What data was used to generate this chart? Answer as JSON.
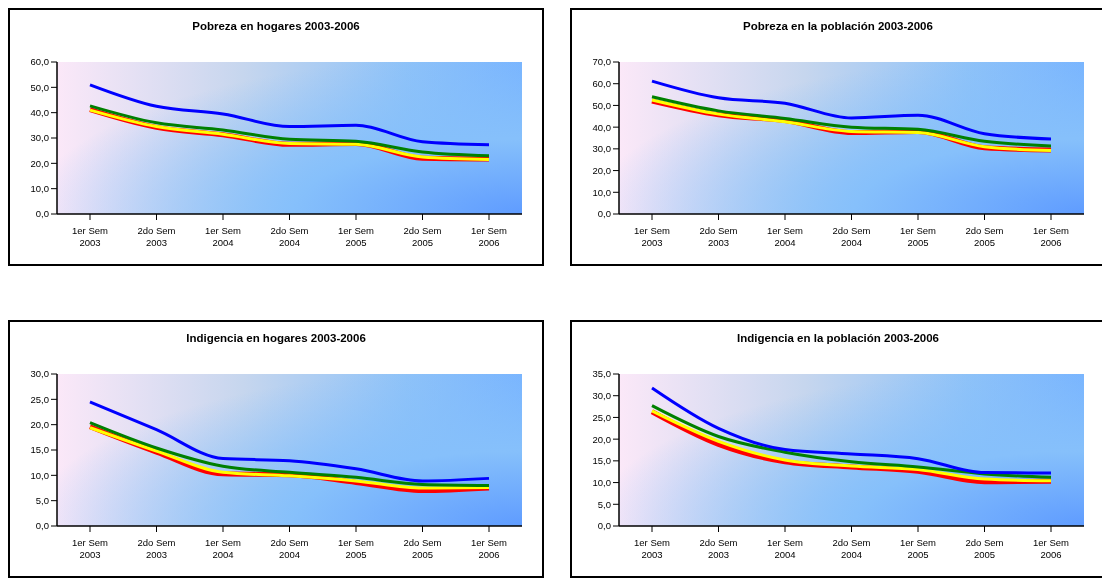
{
  "chart_data": [
    {
      "type": "line",
      "title": "Pobreza en hogares 2003-2006",
      "categories": [
        "1er Sem 2003",
        "2do Sem 2003",
        "1er Sem 2004",
        "2do Sem 2004",
        "1er Sem 2005",
        "2do Sem 2005",
        "1er Sem 2006"
      ],
      "ylim": [
        0,
        60
      ],
      "yticks": [
        {
          "value": 0,
          "label": "0,0"
        },
        {
          "value": 10,
          "label": "10,0"
        },
        {
          "value": 20,
          "label": "20,0"
        },
        {
          "value": 30,
          "label": "30,0"
        },
        {
          "value": 40,
          "label": "40,0"
        },
        {
          "value": 50,
          "label": "50,0"
        },
        {
          "value": 60,
          "label": "60,0"
        }
      ],
      "grid": false,
      "legend": false,
      "marker": "none",
      "line_style": "solid",
      "series": [
        {
          "color": "#ff0000",
          "values": [
            41.2,
            34.2,
            31.3,
            27.5,
            27.8,
            22.0,
            21.7
          ]
        },
        {
          "color": "#ffff00",
          "values": [
            41.0,
            34.5,
            31.5,
            27.8,
            27.5,
            22.5,
            21.5
          ]
        },
        {
          "color": "#008000",
          "values": [
            42.7,
            36.0,
            33.2,
            29.5,
            28.7,
            24.5,
            23.0
          ]
        },
        {
          "color": "#0000ff",
          "values": [
            51.0,
            42.5,
            39.5,
            34.5,
            35.0,
            28.5,
            27.3
          ]
        }
      ]
    },
    {
      "type": "line",
      "title": "Pobreza en la población 2003-2006",
      "categories": [
        "1er Sem 2003",
        "2do Sem 2003",
        "1er Sem 2004",
        "2do Sem 2004",
        "1er Sem 2005",
        "2do Sem 2005",
        "1er Sem 2006"
      ],
      "ylim": [
        0,
        70
      ],
      "yticks": [
        {
          "value": 0,
          "label": "0,0"
        },
        {
          "value": 10,
          "label": "10,0"
        },
        {
          "value": 20,
          "label": "20,0"
        },
        {
          "value": 30,
          "label": "30,0"
        },
        {
          "value": 40,
          "label": "40,0"
        },
        {
          "value": 50,
          "label": "50,0"
        },
        {
          "value": 60,
          "label": "60,0"
        },
        {
          "value": 70,
          "label": "70,0"
        }
      ],
      "grid": false,
      "legend": false,
      "marker": "none",
      "line_style": "solid",
      "series": [
        {
          "color": "#ff0000",
          "values": [
            52.0,
            45.7,
            43.0,
            37.5,
            38.0,
            30.5,
            29.5
          ]
        },
        {
          "color": "#ffff00",
          "values": [
            52.5,
            46.0,
            42.5,
            38.0,
            37.5,
            31.0,
            29.2
          ]
        },
        {
          "color": "#008000",
          "values": [
            54.0,
            47.5,
            44.0,
            40.0,
            39.0,
            33.5,
            31.3
          ]
        },
        {
          "color": "#0000ff",
          "values": [
            61.2,
            53.5,
            51.0,
            44.2,
            45.5,
            37.0,
            34.5
          ]
        }
      ]
    },
    {
      "type": "line",
      "title": "Indigencia en hogares 2003-2006",
      "categories": [
        "1er Sem 2003",
        "2do Sem 2003",
        "1er Sem 2004",
        "2do Sem 2004",
        "1er Sem 2005",
        "2do Sem 2005",
        "1er Sem 2006"
      ],
      "ylim": [
        0,
        30
      ],
      "yticks": [
        {
          "value": 0,
          "label": "0,0"
        },
        {
          "value": 5,
          "label": "5,0"
        },
        {
          "value": 10,
          "label": "10,0"
        },
        {
          "value": 15,
          "label": "15,0"
        },
        {
          "value": 20,
          "label": "20,0"
        },
        {
          "value": 25,
          "label": "25,0"
        },
        {
          "value": 30,
          "label": "30,0"
        }
      ],
      "grid": false,
      "legend": false,
      "marker": "none",
      "line_style": "solid",
      "series": [
        {
          "color": "#ff0000",
          "values": [
            19.6,
            14.6,
            10.3,
            10.1,
            8.6,
            7.0,
            7.5
          ]
        },
        {
          "color": "#ffff00",
          "values": [
            19.4,
            14.8,
            10.6,
            9.9,
            8.9,
            7.5,
            7.6
          ]
        },
        {
          "color": "#008000",
          "values": [
            20.4,
            15.4,
            11.8,
            10.6,
            9.6,
            8.2,
            8.0
          ]
        },
        {
          "color": "#0000ff",
          "values": [
            24.5,
            19.0,
            13.3,
            12.9,
            11.3,
            8.9,
            9.4
          ]
        }
      ]
    },
    {
      "type": "line",
      "title": "Indigencia en la población 2003-2006",
      "categories": [
        "1er Sem 2003",
        "2do Sem 2003",
        "1er Sem 2004",
        "2do Sem 2004",
        "1er Sem 2005",
        "2do Sem 2005",
        "1er Sem 2006"
      ],
      "ylim": [
        0,
        35
      ],
      "yticks": [
        {
          "value": 0,
          "label": "0,0"
        },
        {
          "value": 5,
          "label": "5,0"
        },
        {
          "value": 10,
          "label": "10,0"
        },
        {
          "value": 15,
          "label": "15,0"
        },
        {
          "value": 20,
          "label": "20,0"
        },
        {
          "value": 25,
          "label": "25,0"
        },
        {
          "value": 30,
          "label": "30,0"
        },
        {
          "value": 35,
          "label": "35,0"
        }
      ],
      "grid": false,
      "legend": false,
      "marker": "none",
      "line_style": "solid",
      "series": [
        {
          "color": "#ff0000",
          "values": [
            26.3,
            18.8,
            14.8,
            13.6,
            12.6,
            10.2,
            10.3
          ]
        },
        {
          "color": "#ffff00",
          "values": [
            26.5,
            19.5,
            15.2,
            13.8,
            13.0,
            10.8,
            10.4
          ]
        },
        {
          "color": "#008000",
          "values": [
            27.7,
            20.6,
            17.0,
            14.8,
            13.6,
            12.0,
            11.2
          ]
        },
        {
          "color": "#0000ff",
          "values": [
            31.8,
            22.5,
            17.6,
            16.6,
            15.5,
            12.3,
            12.2
          ]
        }
      ]
    }
  ]
}
